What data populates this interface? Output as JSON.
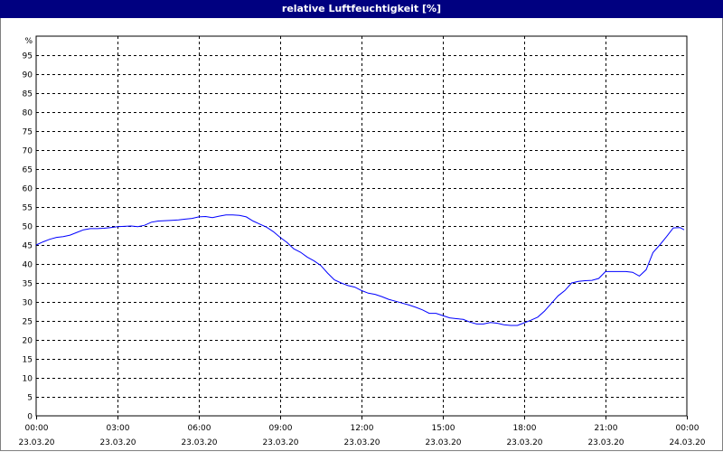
{
  "window": {
    "title": "relative Luftfeuchtigkeit [%]"
  },
  "colors": {
    "titlebar": "#000080",
    "line": "#0000ff",
    "grid": "#000000"
  },
  "chart_data": {
    "type": "line",
    "title": "relative Luftfeuchtigkeit [%]",
    "ylabel": "%",
    "ylim": [
      0,
      100
    ],
    "y_ticks": [
      0,
      5,
      10,
      15,
      20,
      25,
      30,
      35,
      40,
      45,
      50,
      55,
      60,
      65,
      70,
      75,
      80,
      85,
      90,
      95
    ],
    "xlim_hours": [
      0,
      24
    ],
    "x_ticks": [
      {
        "time": "00:00",
        "date": "23.03.20"
      },
      {
        "time": "03:00",
        "date": "23.03.20"
      },
      {
        "time": "06:00",
        "date": "23.03.20"
      },
      {
        "time": "09:00",
        "date": "23.03.20"
      },
      {
        "time": "12:00",
        "date": "23.03.20"
      },
      {
        "time": "15:00",
        "date": "23.03.20"
      },
      {
        "time": "18:00",
        "date": "23.03.20"
      },
      {
        "time": "21:00",
        "date": "23.03.20"
      },
      {
        "time": "00:00",
        "date": "24.03.20"
      }
    ],
    "grid": true,
    "series": [
      {
        "x": [
          0,
          0.25,
          0.5,
          0.75,
          1,
          1.25,
          1.5,
          1.75,
          2,
          2.25,
          2.5,
          2.75,
          3,
          3.25,
          3.5,
          3.75,
          4,
          4.25,
          4.5,
          4.75,
          5,
          5.25,
          5.5,
          5.75,
          6,
          6.25,
          6.5,
          6.75,
          7,
          7.25,
          7.5,
          7.75,
          8,
          8.25,
          8.5,
          8.75,
          9,
          9.25,
          9.5,
          9.75,
          10,
          10.25,
          10.5,
          10.75,
          11,
          11.25,
          11.5,
          11.75,
          12,
          12.25,
          12.5,
          12.75,
          13,
          13.25,
          13.5,
          13.75,
          14,
          14.25,
          14.5,
          14.75,
          15,
          15.25,
          15.5,
          15.75,
          16,
          16.25,
          16.5,
          16.75,
          17,
          17.25,
          17.5,
          17.75,
          18,
          18.25,
          18.5,
          18.75,
          19,
          19.25,
          19.5,
          19.75,
          20,
          20.25,
          20.5,
          20.75,
          21,
          21.25,
          21.5,
          21.75,
          22,
          22.25,
          22.5,
          22.75,
          23,
          23.25,
          23.5,
          23.75,
          23.9
        ],
        "y": [
          45.0,
          45.8,
          46.5,
          47.0,
          47.2,
          47.6,
          48.3,
          49.0,
          49.3,
          49.3,
          49.4,
          49.6,
          49.8,
          49.9,
          50.0,
          49.8,
          50.2,
          51.0,
          51.3,
          51.4,
          51.5,
          51.6,
          51.8,
          52.0,
          52.4,
          52.5,
          52.2,
          52.6,
          52.9,
          52.9,
          52.8,
          52.4,
          51.3,
          50.5,
          49.7,
          48.5,
          47.0,
          45.7,
          44.0,
          43.1,
          41.8,
          40.8,
          39.6,
          37.6,
          35.8,
          35.0,
          34.3,
          33.9,
          33.0,
          32.3,
          32.0,
          31.4,
          30.7,
          30.2,
          29.7,
          29.2,
          28.6,
          27.9,
          27.0,
          27.0,
          26.4,
          25.8,
          25.6,
          25.4,
          24.7,
          24.2,
          24.2,
          24.6,
          24.4,
          24.0,
          23.8,
          23.8,
          24.5,
          25.2,
          26.0,
          27.6,
          29.6,
          31.6,
          33.0,
          35.0,
          35.4,
          35.6,
          35.7,
          36.2,
          38.0,
          38.0,
          38.0,
          38.0,
          37.8,
          36.8,
          38.5,
          43.0,
          45.0,
          47.2,
          49.5,
          49.6,
          49.0
        ]
      }
    ]
  }
}
